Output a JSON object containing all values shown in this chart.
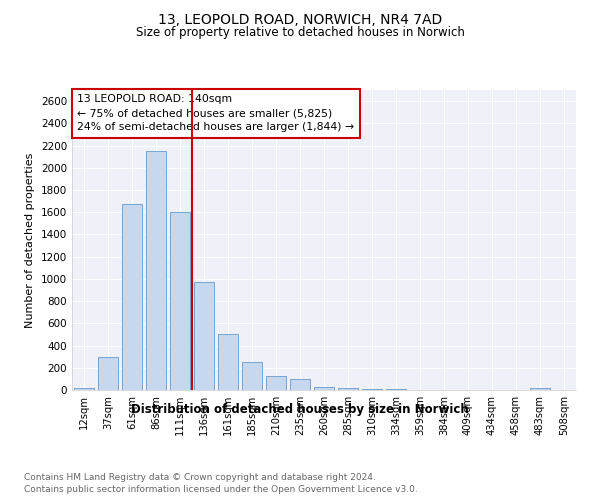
{
  "title": "13, LEOPOLD ROAD, NORWICH, NR4 7AD",
  "subtitle": "Size of property relative to detached houses in Norwich",
  "xlabel": "Distribution of detached houses by size in Norwich",
  "ylabel": "Number of detached properties",
  "categories": [
    "12sqm",
    "37sqm",
    "61sqm",
    "86sqm",
    "111sqm",
    "136sqm",
    "161sqm",
    "185sqm",
    "210sqm",
    "235sqm",
    "260sqm",
    "285sqm",
    "310sqm",
    "334sqm",
    "359sqm",
    "384sqm",
    "409sqm",
    "434sqm",
    "458sqm",
    "483sqm",
    "508sqm"
  ],
  "values": [
    20,
    300,
    1670,
    2150,
    1600,
    970,
    500,
    250,
    130,
    100,
    30,
    20,
    8,
    5,
    3,
    2,
    2,
    2,
    2,
    20,
    2
  ],
  "bar_color": "#c5d8f0",
  "bar_edge_color": "#6699cc",
  "vline_index": 5,
  "vline_color": "#cc0000",
  "annotation_line1": "13 LEOPOLD ROAD: 140sqm",
  "annotation_line2": "← 75% of detached houses are smaller (5,825)",
  "annotation_line3": "24% of semi-detached houses are larger (1,844) →",
  "annotation_box_color": "#cc0000",
  "ylim": [
    0,
    2700
  ],
  "yticks": [
    0,
    200,
    400,
    600,
    800,
    1000,
    1200,
    1400,
    1600,
    1800,
    2000,
    2200,
    2400,
    2600
  ],
  "footnote1": "Contains HM Land Registry data © Crown copyright and database right 2024.",
  "footnote2": "Contains public sector information licensed under the Open Government Licence v3.0.",
  "plot_bg_color": "#eef2f8"
}
